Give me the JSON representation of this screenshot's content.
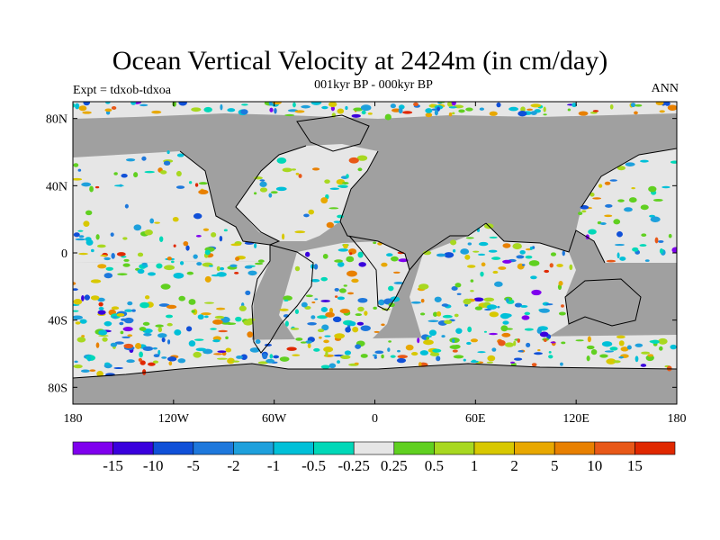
{
  "title": "Ocean Vertical Velocity at 2424m (in cm/day)",
  "subtitle": "001kyr BP - 000kyr BP",
  "experiment_label": "Expt = tdxob-tdxoa",
  "season_label": "ANN",
  "map": {
    "projection": "cylindrical equidistant",
    "lon_range": [
      -180,
      180
    ],
    "lat_range": [
      -90,
      90
    ],
    "lat_ticks": [
      {
        "value": 80,
        "label": "80N"
      },
      {
        "value": 40,
        "label": "40N"
      },
      {
        "value": 0,
        "label": "0"
      },
      {
        "value": -40,
        "label": "40S"
      },
      {
        "value": -80,
        "label": "80S"
      }
    ],
    "lon_ticks": [
      {
        "value": -180,
        "label": "180"
      },
      {
        "value": -120,
        "label": "120W"
      },
      {
        "value": -60,
        "label": "60W"
      },
      {
        "value": 0,
        "label": "0"
      },
      {
        "value": 60,
        "label": "60E"
      },
      {
        "value": 120,
        "label": "120E"
      },
      {
        "value": 180,
        "label": "180"
      }
    ],
    "land_color": "#a0a0a0",
    "ocean_near_zero_color": "#e6e6e6"
  },
  "colorbar": {
    "colors": [
      "#7f00ee",
      "#3a00dd",
      "#1050d8",
      "#1e78dc",
      "#1ea0dc",
      "#00c0d8",
      "#00d8b8",
      "#e6e6e6",
      "#60d020",
      "#a8d820",
      "#d8c800",
      "#e8a800",
      "#e88000",
      "#e85818",
      "#e02800"
    ],
    "labels": [
      "-15",
      "-10",
      "-5",
      "-2",
      "-1",
      "-0.5",
      "-0.25",
      "0.25",
      "0.5",
      "1",
      "2",
      "5",
      "10",
      "15"
    ]
  }
}
